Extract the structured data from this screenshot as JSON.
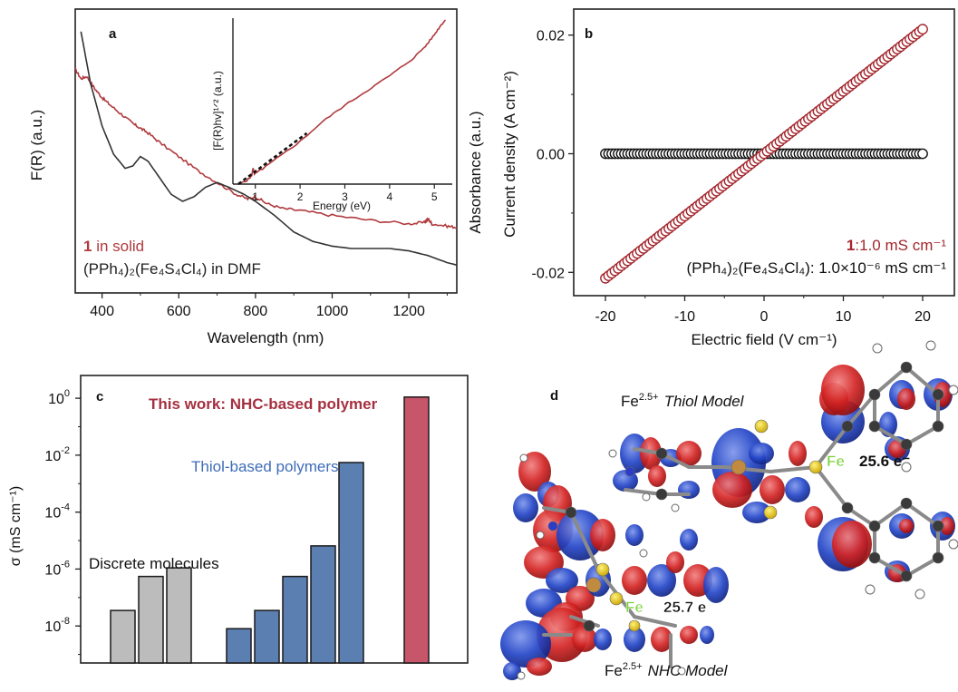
{
  "chart_data": [
    {
      "panel": "a",
      "type": "line",
      "xlabel": "Wavelength (nm)",
      "ylabel": "F(R) (a.u.)",
      "xlim": [
        330,
        1325
      ],
      "xticks": [
        400,
        600,
        800,
        1000,
        1200
      ],
      "ylim": [
        0,
        1
      ],
      "series": [
        {
          "name_bold": "1",
          "name_rest": " in solid",
          "color": "#b03a3e",
          "x": [
            330,
            345,
            360,
            380,
            400,
            420,
            450,
            480,
            500,
            520,
            550,
            600,
            650,
            700,
            750,
            780,
            800,
            830,
            870,
            920,
            1000,
            1100,
            1200,
            1240,
            1250,
            1260,
            1300,
            1325
          ],
          "y": [
            0.86,
            0.82,
            0.83,
            0.78,
            0.74,
            0.71,
            0.67,
            0.63,
            0.61,
            0.59,
            0.55,
            0.49,
            0.43,
            0.38,
            0.33,
            0.31,
            0.32,
            0.29,
            0.27,
            0.26,
            0.24,
            0.22,
            0.205,
            0.21,
            0.225,
            0.205,
            0.195,
            0.19
          ]
        },
        {
          "name": "(PPh₄)₂(Fe₄S₄Cl₄) in DMF",
          "color": "#333333",
          "x": [
            345,
            370,
            400,
            430,
            460,
            480,
            500,
            520,
            550,
            580,
            610,
            640,
            670,
            700,
            730,
            770,
            800,
            850,
            900,
            950,
            1000,
            1050,
            1100,
            1150,
            1200,
            1250,
            1300,
            1325
          ],
          "y": [
            1.02,
            0.8,
            0.62,
            0.5,
            0.44,
            0.45,
            0.49,
            0.47,
            0.4,
            0.33,
            0.3,
            0.32,
            0.36,
            0.38,
            0.36,
            0.33,
            0.3,
            0.24,
            0.17,
            0.13,
            0.11,
            0.1,
            0.1,
            0.1,
            0.09,
            0.07,
            0.04,
            0.03
          ]
        }
      ],
      "inset": {
        "type": "line",
        "xlabel": "Energy (eV)",
        "ylabel": "[F(R)hv]¹ᐟ² (a.u.)",
        "xlim": [
          0.5,
          5.4
        ],
        "xticks": [
          1,
          2,
          3,
          4,
          5
        ],
        "ylim": [
          0,
          1
        ],
        "series": [
          {
            "color": "#b03a3e",
            "x": [
              0.62,
              0.8,
              0.92,
              0.95,
              0.98,
              1.2,
              1.5,
              2.0,
              2.5,
              3.0,
              3.5,
              4.0,
              4.5,
              4.8,
              5.0,
              5.15,
              5.25
            ],
            "y": [
              0.0,
              0.02,
              0.05,
              0.1,
              0.06,
              0.1,
              0.16,
              0.26,
              0.38,
              0.48,
              0.57,
              0.66,
              0.76,
              0.84,
              0.91,
              0.97,
              1.0
            ]
          }
        ],
        "fit": {
          "x": [
            0.62,
            2.15
          ],
          "y": [
            0.0,
            0.31
          ]
        }
      }
    },
    {
      "panel": "b",
      "type": "scatter",
      "xlabel": "Electric field (V cm⁻¹)",
      "ylabel": "Current density (A cm⁻²)",
      "ylabel_overlap": "Absorbance (a.u.)",
      "xlim": [
        -24,
        24
      ],
      "ylim": [
        -0.025,
        0.025
      ],
      "xticks": [
        -20,
        -10,
        0,
        10,
        20
      ],
      "yticks": [
        -0.02,
        0.0,
        0.02
      ],
      "ytick_labels": [
        "-0.02",
        "0.00",
        "0.02"
      ],
      "series": [
        {
          "name_bold": "1",
          "name_rest": ":1.0 mS cm⁻¹",
          "color": "#a3262d",
          "x_range": [
            -20,
            20
          ],
          "slope": 0.00105
        },
        {
          "name": "(PPh₄)₂(Fe₄S₄Cl₄): 1.0×10⁻⁶ mS cm⁻¹",
          "color": "#111111",
          "x_range": [
            -20,
            20
          ],
          "slope": 0.0
        }
      ]
    },
    {
      "panel": "c",
      "type": "bar",
      "ylabel": "σ (mS cm⁻¹)",
      "yscale": "log",
      "ylim_log10": [
        -9.3,
        0.8
      ],
      "ytick_exponents": [
        -8,
        -6,
        -4,
        -2,
        0
      ],
      "groups": [
        {
          "label": "Discrete molecules",
          "color": "#bcbcbc",
          "values": [
            3.5e-08,
            5.5e-07,
            1.1e-06
          ]
        },
        {
          "label": "Thiol-based polymers",
          "color": "#5b7fb0",
          "values": [
            8e-09,
            3.5e-08,
            5.5e-07,
            6.5e-06,
            0.0055
          ]
        },
        {
          "label": "This work: NHC-based polymer",
          "color": "#c7566a",
          "values": [
            1.1
          ]
        }
      ]
    }
  ],
  "panels": {
    "a": "a",
    "b": "b",
    "c": "c",
    "d": "d"
  },
  "panel_d": {
    "thiol_model": {
      "prefix": "Fe",
      "sup": "2.5+",
      "name": "Thiol Model"
    },
    "nhc_model": {
      "prefix": "Fe",
      "sup": "2.5+",
      "name": "NHC Model"
    },
    "thiol_fe_label": "Fe",
    "thiol_electrons": "25.6 e⁻",
    "nhc_fe_label": "Fe",
    "nhc_electrons": "25.7 e⁻"
  }
}
